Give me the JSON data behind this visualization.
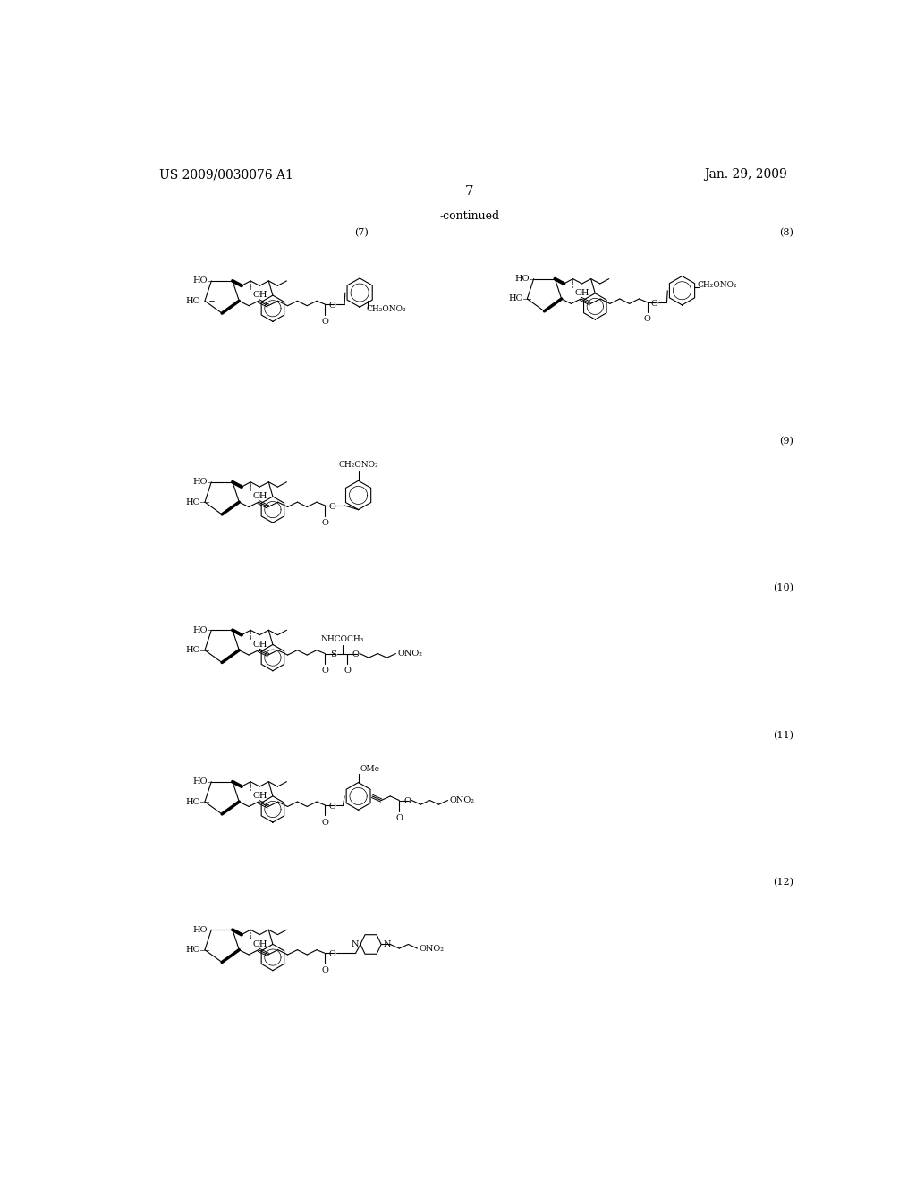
{
  "background_color": "#ffffff",
  "page_number": "7",
  "left_header": "US 2009/0030076 A1",
  "right_header": "Jan. 29, 2009",
  "continued_label": "-continued"
}
